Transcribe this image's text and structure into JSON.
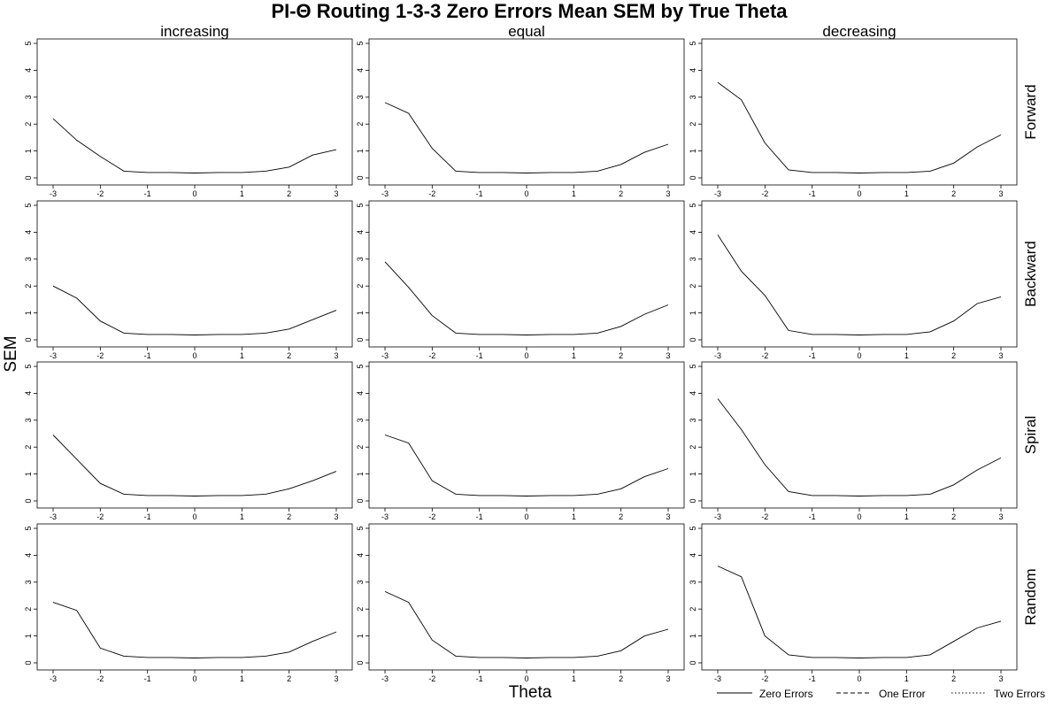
{
  "chart_data": {
    "type": "line",
    "title": "PI-Θ Routing 1-3-3 Zero Errors Mean SEM by True Theta",
    "xlabel": "Theta",
    "ylabel": "SEM",
    "xlim": [
      -3,
      3
    ],
    "ylim": [
      0,
      5
    ],
    "x_ticks": [
      -3,
      -2,
      -1,
      0,
      1,
      2,
      3
    ],
    "y_ticks": [
      0,
      1,
      2,
      3,
      4,
      5
    ],
    "x": [
      -3,
      -2.5,
      -2,
      -1.5,
      -1,
      -0.5,
      0,
      0.5,
      1,
      1.5,
      2,
      2.5,
      3
    ],
    "columns": [
      "increasing",
      "equal",
      "decreasing"
    ],
    "rows": [
      "Forward",
      "Backward",
      "Spiral",
      "Random"
    ],
    "legend": {
      "position": "bottom-right",
      "entries": [
        {
          "label": "Zero Errors",
          "style": "solid"
        },
        {
          "label": "One Error",
          "style": "dashed"
        },
        {
          "label": "Two Errors",
          "style": "dotted"
        }
      ]
    },
    "panels": [
      {
        "row": "Forward",
        "column": "increasing",
        "series": [
          {
            "name": "Zero Errors",
            "values": [
              2.2,
              1.4,
              0.8,
              0.25,
              0.2,
              0.2,
              0.18,
              0.2,
              0.2,
              0.25,
              0.4,
              0.85,
              1.05
            ]
          }
        ]
      },
      {
        "row": "Forward",
        "column": "equal",
        "series": [
          {
            "name": "Zero Errors",
            "values": [
              2.8,
              2.4,
              1.1,
              0.25,
              0.2,
              0.2,
              0.18,
              0.2,
              0.2,
              0.25,
              0.5,
              0.95,
              1.25
            ]
          }
        ]
      },
      {
        "row": "Forward",
        "column": "decreasing",
        "series": [
          {
            "name": "Zero Errors",
            "values": [
              3.55,
              2.9,
              1.3,
              0.3,
              0.2,
              0.2,
              0.18,
              0.2,
              0.2,
              0.25,
              0.55,
              1.15,
              1.6
            ]
          }
        ]
      },
      {
        "row": "Backward",
        "column": "increasing",
        "series": [
          {
            "name": "Zero Errors",
            "values": [
              2.0,
              1.55,
              0.7,
              0.25,
              0.2,
              0.2,
              0.18,
              0.2,
              0.2,
              0.25,
              0.4,
              0.75,
              1.1
            ]
          }
        ]
      },
      {
        "row": "Backward",
        "column": "equal",
        "series": [
          {
            "name": "Zero Errors",
            "values": [
              2.9,
              1.95,
              0.9,
              0.25,
              0.2,
              0.2,
              0.18,
              0.2,
              0.2,
              0.25,
              0.5,
              0.95,
              1.3
            ]
          }
        ]
      },
      {
        "row": "Backward",
        "column": "decreasing",
        "series": [
          {
            "name": "Zero Errors",
            "values": [
              3.9,
              2.55,
              1.65,
              0.35,
              0.2,
              0.2,
              0.18,
              0.2,
              0.2,
              0.3,
              0.7,
              1.35,
              1.6
            ]
          }
        ]
      },
      {
        "row": "Spiral",
        "column": "increasing",
        "series": [
          {
            "name": "Zero Errors",
            "values": [
              2.45,
              1.55,
              0.65,
              0.25,
              0.2,
              0.2,
              0.18,
              0.2,
              0.2,
              0.25,
              0.45,
              0.75,
              1.1
            ]
          }
        ]
      },
      {
        "row": "Spiral",
        "column": "equal",
        "series": [
          {
            "name": "Zero Errors",
            "values": [
              2.45,
              2.15,
              0.75,
              0.25,
              0.2,
              0.2,
              0.18,
              0.2,
              0.2,
              0.25,
              0.45,
              0.9,
              1.2
            ]
          }
        ]
      },
      {
        "row": "Spiral",
        "column": "decreasing",
        "series": [
          {
            "name": "Zero Errors",
            "values": [
              3.8,
              2.65,
              1.35,
              0.35,
              0.2,
              0.2,
              0.18,
              0.2,
              0.2,
              0.25,
              0.6,
              1.15,
              1.6
            ]
          }
        ]
      },
      {
        "row": "Random",
        "column": "increasing",
        "series": [
          {
            "name": "Zero Errors",
            "values": [
              2.25,
              1.95,
              0.55,
              0.25,
              0.2,
              0.2,
              0.18,
              0.2,
              0.2,
              0.25,
              0.4,
              0.8,
              1.15
            ]
          }
        ]
      },
      {
        "row": "Random",
        "column": "equal",
        "series": [
          {
            "name": "Zero Errors",
            "values": [
              2.65,
              2.25,
              0.85,
              0.25,
              0.2,
              0.2,
              0.18,
              0.2,
              0.2,
              0.25,
              0.45,
              1.0,
              1.25
            ]
          }
        ]
      },
      {
        "row": "Random",
        "column": "decreasing",
        "series": [
          {
            "name": "Zero Errors",
            "values": [
              3.6,
              3.2,
              1.0,
              0.3,
              0.2,
              0.2,
              0.18,
              0.2,
              0.2,
              0.3,
              0.8,
              1.3,
              1.55
            ]
          }
        ]
      }
    ]
  }
}
